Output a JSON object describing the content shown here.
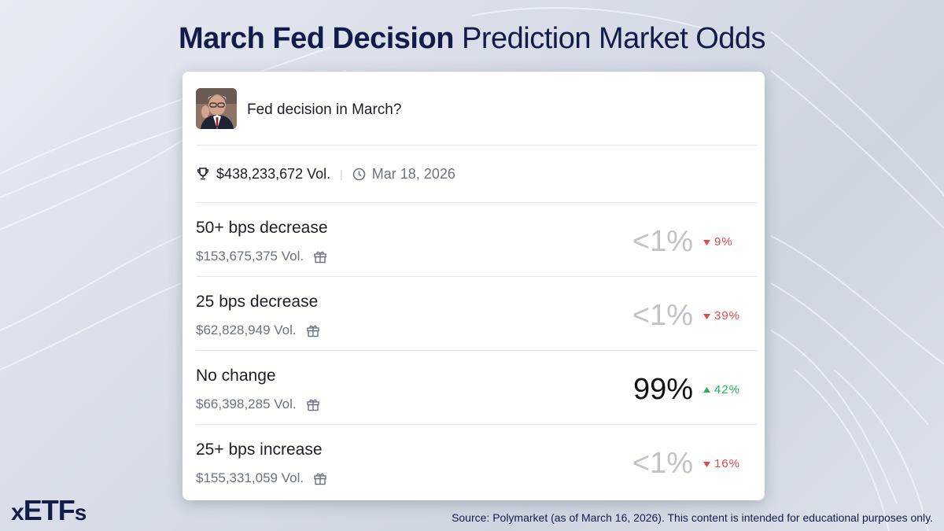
{
  "headline": {
    "bold": "March Fed Decision",
    "rest": "Prediction Market Odds"
  },
  "market": {
    "title": "Fed decision in March?",
    "total_volume": "$438,233,672 Vol.",
    "end_date": "Mar 18, 2026"
  },
  "outcomes": [
    {
      "name": "50+ bps decrease",
      "volume": "$153,675,375 Vol.",
      "probability": "<1%",
      "change": "9%",
      "direction": "down"
    },
    {
      "name": "25 bps decrease",
      "volume": "$62,828,949 Vol.",
      "probability": "<1%",
      "change": "39%",
      "direction": "down"
    },
    {
      "name": "No change",
      "volume": "$66,398,285 Vol.",
      "probability": "99%",
      "change": "42%",
      "direction": "up"
    },
    {
      "name": "25+ bps increase",
      "volume": "$155,331,059 Vol.",
      "probability": "<1%",
      "change": "16%",
      "direction": "down"
    }
  ],
  "logo": {
    "x": "x",
    "main": "ETF",
    "s": "s"
  },
  "source": "Source: Polymarket (as of March 16, 2026). This content is intended for educational purposes only.",
  "colors": {
    "down": "#e04b4b",
    "up": "#22b35e",
    "brand": "#131b4a"
  },
  "icons": [
    "trophy-icon",
    "clock-icon",
    "gift-icon",
    "triangle-down-icon",
    "triangle-up-icon"
  ]
}
